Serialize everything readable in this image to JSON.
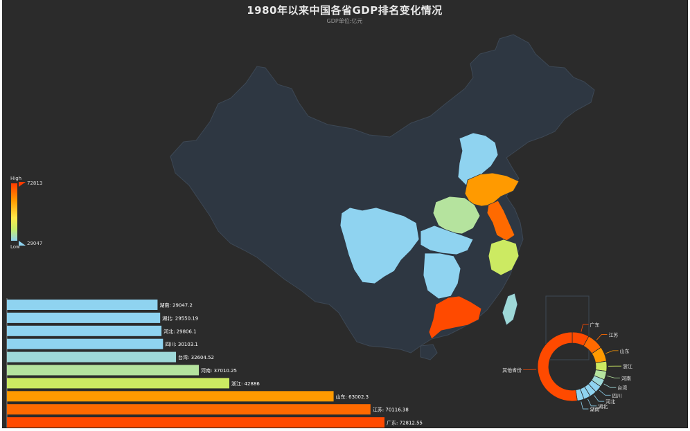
{
  "title": "1980年以来中国各省GDP排名变化情况",
  "subtitle": "GDP单位:亿元",
  "colors": {
    "background": "#2b2b2b",
    "map_fill": "#2e3742",
    "map_border": "#3d4855"
  },
  "visual_map": {
    "high_label": "High",
    "low_label": "Low",
    "max": "72813",
    "min": "29047",
    "gradient": [
      "#ff3c00",
      "#ff9a00",
      "#ffe94a",
      "#c8ed6a",
      "#8fd3f0"
    ]
  },
  "chart_data": [
    {
      "type": "bar",
      "orientation": "horizontal",
      "categories": [
        "湖南",
        "湖北",
        "河北",
        "四川",
        "台湾",
        "河南",
        "浙江",
        "山东",
        "江苏",
        "广东"
      ],
      "values": [
        29047.2,
        29550.19,
        29806.1,
        30103.1,
        32604.52,
        37010.25,
        42886,
        63002.3,
        70116.38,
        72812.55
      ],
      "labels": [
        "湖南: 29047.2",
        "湖北: 29550.19",
        "河北: 29806.1",
        "四川: 30103.1",
        "台湾: 32604.52",
        "河南: 37010.25",
        "浙江: 42886",
        "山东: 63002.3",
        "江苏: 70116.38",
        "广东: 72812.55"
      ],
      "colors": [
        "#8fd3f0",
        "#8fd3f0",
        "#8fd3f0",
        "#8fd3f0",
        "#9ed8d8",
        "#b5e39e",
        "#ccea62",
        "#ff9a00",
        "#ff6a00",
        "#ff4a00"
      ],
      "xlim": [
        0,
        80000
      ]
    },
    {
      "type": "pie",
      "style": "donut",
      "labels": [
        "广东",
        "江苏",
        "山东",
        "浙江",
        "河南",
        "台湾",
        "四川",
        "河北",
        "湖北",
        "湖南",
        "其他省份"
      ],
      "colors": [
        "#ff4a00",
        "#ff6a00",
        "#ff9a00",
        "#ccea62",
        "#b5e39e",
        "#9ed8d8",
        "#8fd3f0",
        "#8fd3f0",
        "#8fd3f0",
        "#8fd3f0",
        "#ff4a00"
      ],
      "values": [
        72812.55,
        70116.38,
        63002.3,
        42886,
        37010.25,
        32604.52,
        30103.1,
        29806.1,
        29550.19,
        29047.2,
        480000
      ]
    }
  ],
  "map_regions": [
    {
      "name": "四川",
      "color": "#8fd3f0"
    },
    {
      "name": "河北",
      "color": "#8fd3f0"
    },
    {
      "name": "山东",
      "color": "#ff9a00"
    },
    {
      "name": "河南",
      "color": "#b5e39e"
    },
    {
      "name": "江苏",
      "color": "#ff6a00"
    },
    {
      "name": "浙江",
      "color": "#ccea62"
    },
    {
      "name": "湖北",
      "color": "#8fd3f0"
    },
    {
      "name": "湖南",
      "color": "#8fd3f0"
    },
    {
      "name": "广东",
      "color": "#ff4a00"
    },
    {
      "name": "台湾",
      "color": "#9ed8d8"
    }
  ]
}
